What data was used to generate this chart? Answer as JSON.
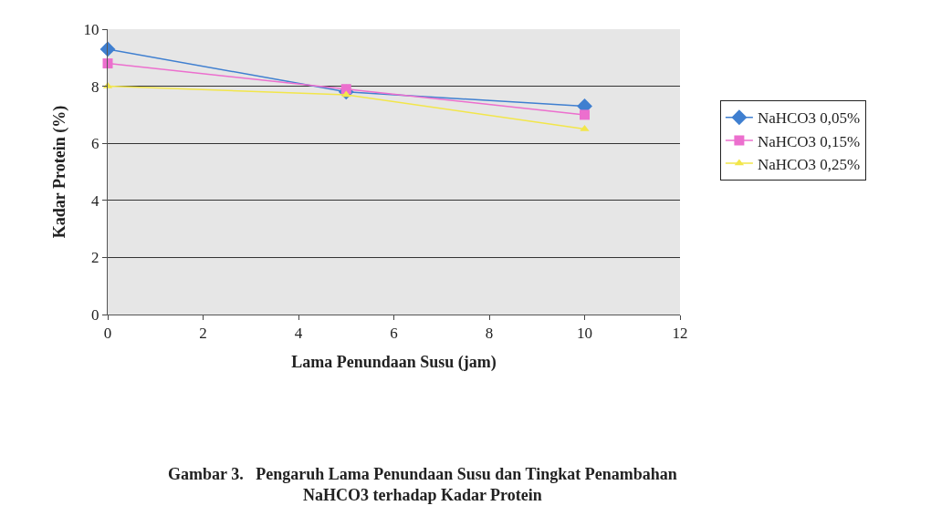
{
  "chart_data": {
    "type": "line",
    "x": [
      0,
      5,
      10
    ],
    "series": [
      {
        "name": "NaHCO3 0,05%",
        "color": "#3f7fd0",
        "values": [
          9.3,
          7.8,
          7.3
        ],
        "marker": "diamond"
      },
      {
        "name": "NaHCO3 0,15%",
        "color": "#ec6fce",
        "values": [
          8.8,
          7.9,
          7.0
        ],
        "marker": "square"
      },
      {
        "name": "NaHCO3 0,25%",
        "color": "#f2e64a",
        "values": [
          8.0,
          7.7,
          6.5
        ],
        "marker": "triangle"
      }
    ],
    "xlabel": "Lama Penundaan Susu (jam)",
    "ylabel": "Kadar Protein (%)",
    "xlim": [
      0,
      12
    ],
    "xticks": [
      0,
      2,
      4,
      6,
      8,
      10,
      12
    ],
    "ylim": [
      0,
      10
    ],
    "yticks": [
      0,
      2,
      4,
      6,
      8,
      10
    ],
    "grid": "y",
    "legend": "right",
    "annotations": [
      "Gambar 3.   Pengaruh Lama Penundaan Susu dan Tingkat Penambahan\nNaHCO3 terhadap Kadar Protein"
    ]
  }
}
